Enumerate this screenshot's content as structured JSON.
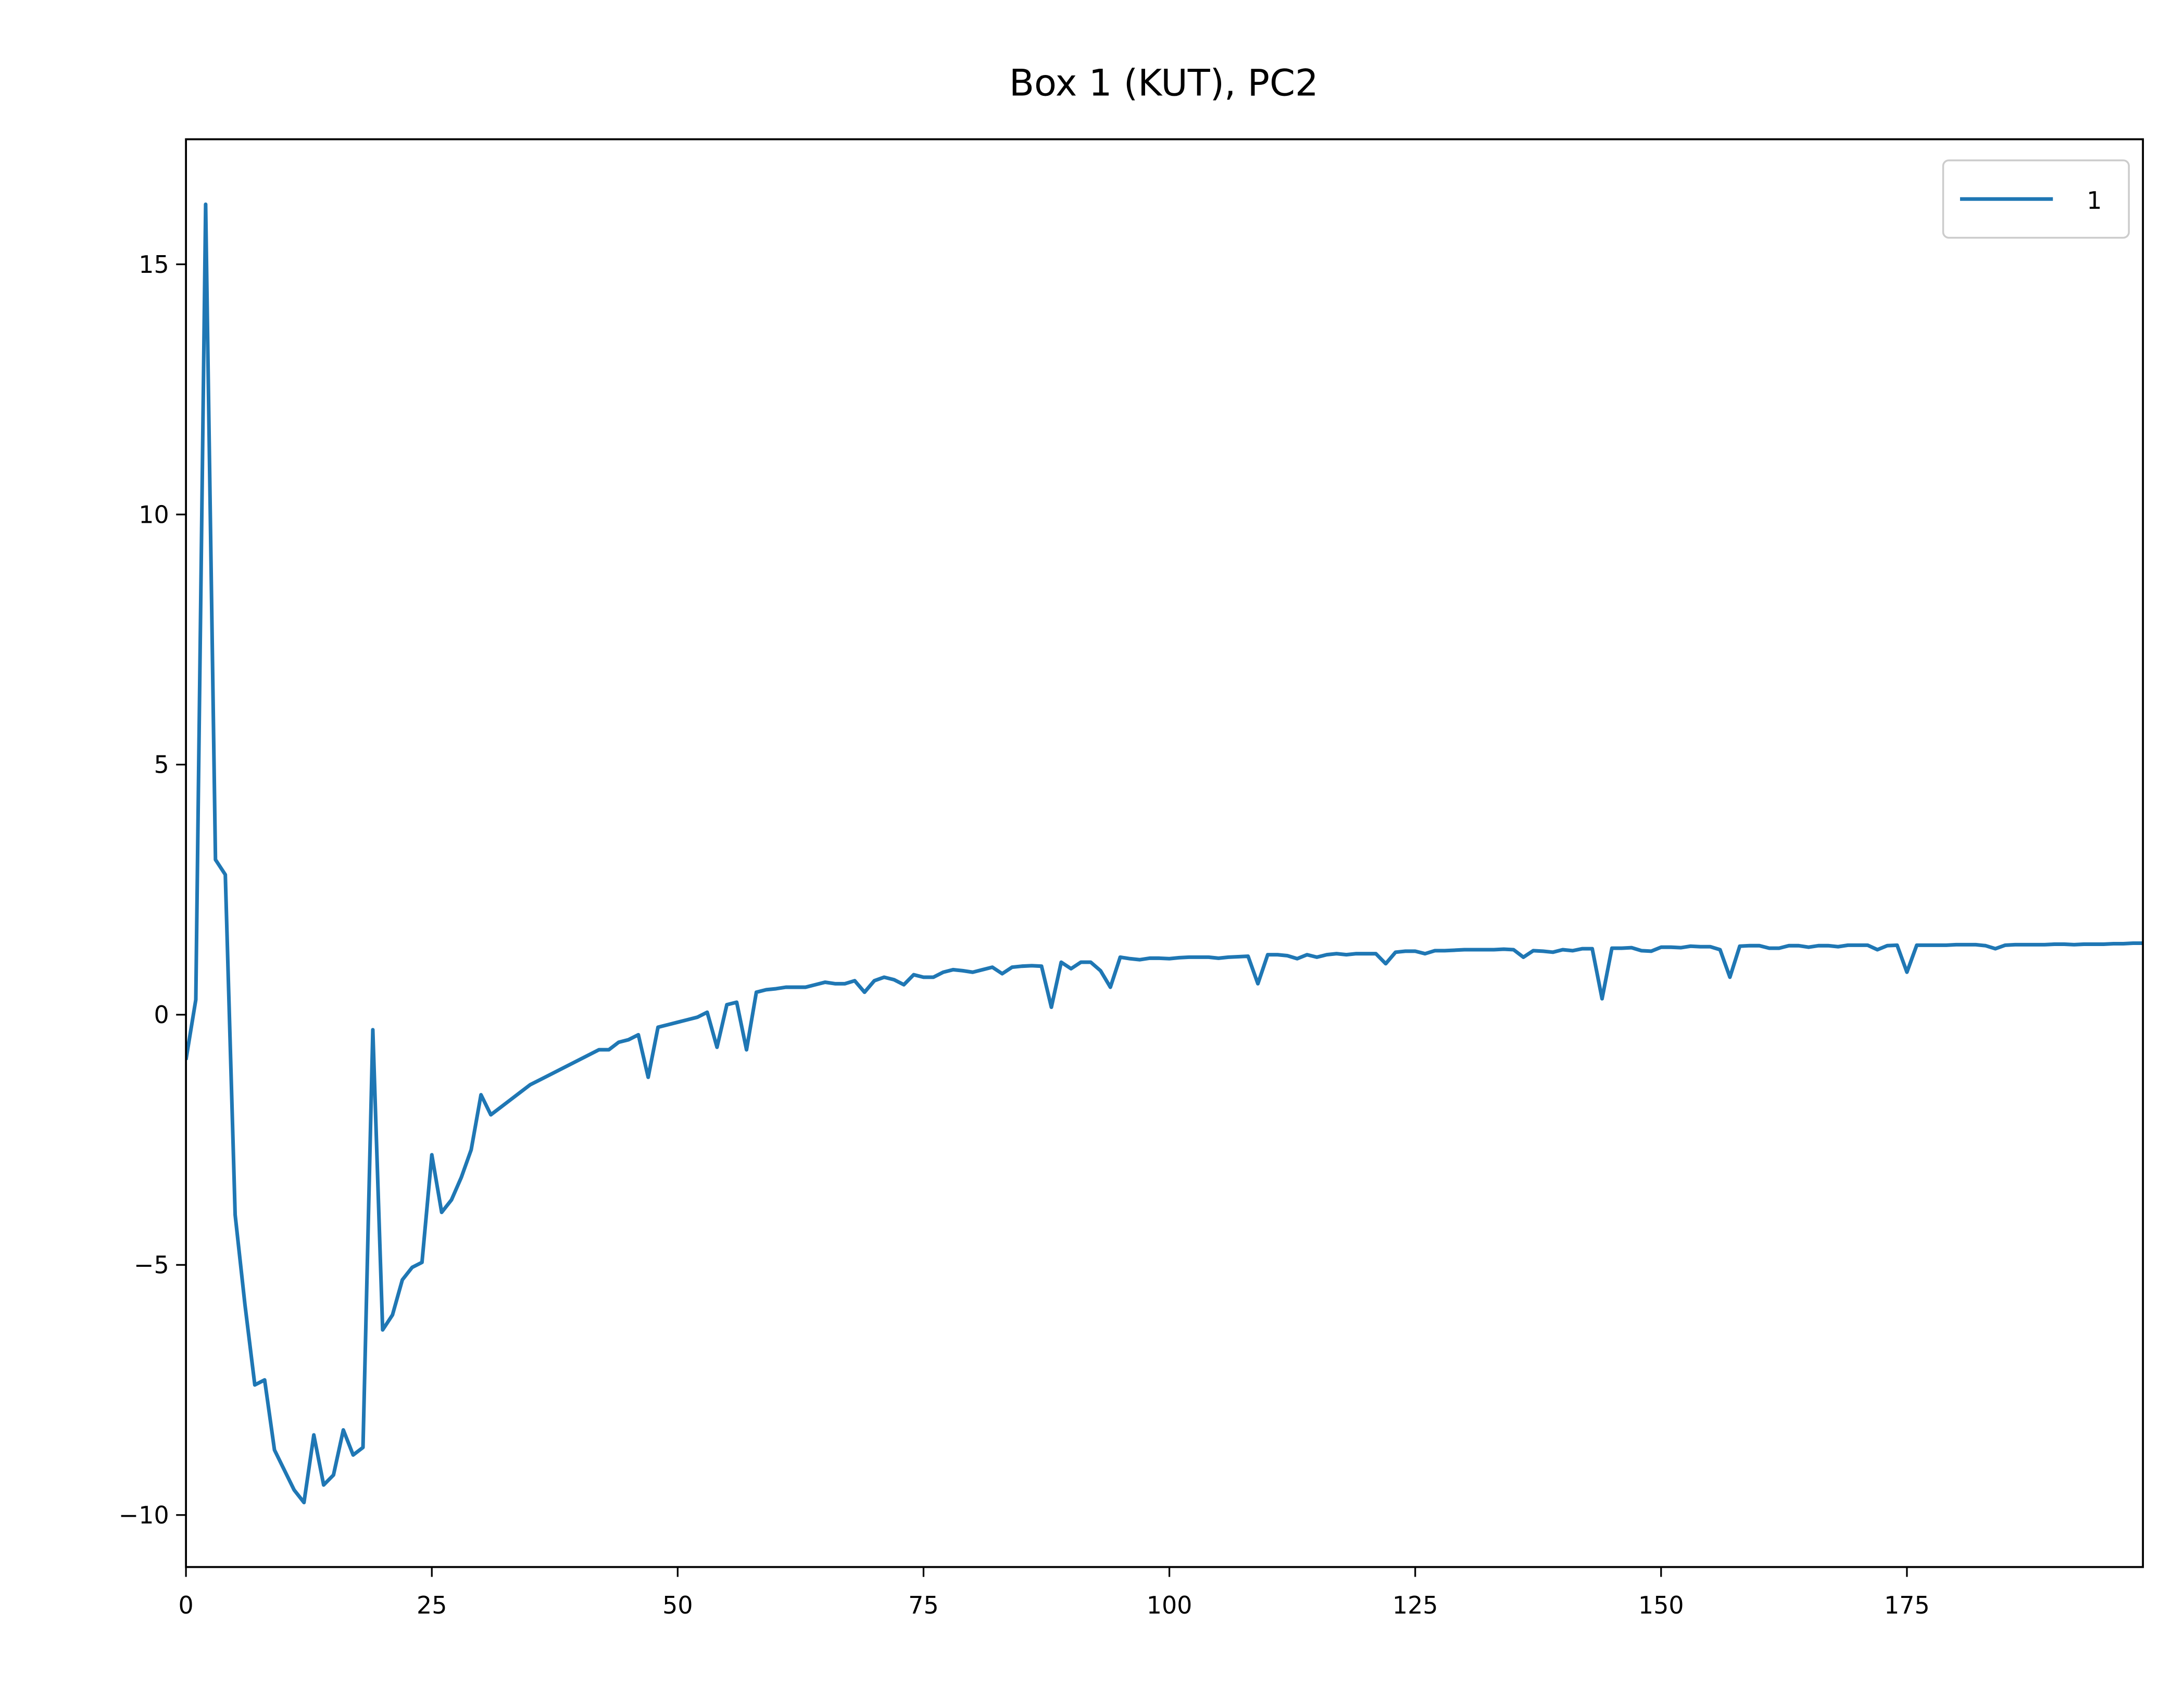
{
  "chart_data": {
    "type": "line",
    "title": "Box 1 (KUT), PC2",
    "x": [
      0,
      1,
      2,
      3,
      4,
      5,
      6,
      7,
      8,
      9,
      10,
      11,
      12,
      13,
      14,
      15,
      16,
      17,
      18,
      19,
      20,
      21,
      22,
      23,
      24,
      25,
      26,
      27,
      28,
      29,
      30,
      31,
      32,
      33,
      34,
      35,
      36,
      37,
      38,
      39,
      40,
      41,
      42,
      43,
      44,
      45,
      46,
      47,
      48,
      49,
      50,
      51,
      52,
      53,
      54,
      55,
      56,
      57,
      58,
      59,
      60,
      61,
      62,
      63,
      64,
      65,
      66,
      67,
      68,
      69,
      70,
      71,
      72,
      73,
      74,
      75,
      76,
      77,
      78,
      79,
      80,
      81,
      82,
      83,
      84,
      85,
      86,
      87,
      88,
      89,
      90,
      91,
      92,
      93,
      94,
      95,
      96,
      97,
      98,
      99,
      100,
      101,
      102,
      103,
      104,
      105,
      106,
      107,
      108,
      109,
      110,
      111,
      112,
      113,
      114,
      115,
      116,
      117,
      118,
      119,
      120,
      121,
      122,
      123,
      124,
      125,
      126,
      127,
      128,
      129,
      130,
      131,
      132,
      133,
      134,
      135,
      136,
      137,
      138,
      139,
      140,
      141,
      142,
      143,
      144,
      145,
      146,
      147,
      148,
      149,
      150,
      151,
      152,
      153,
      154,
      155,
      156,
      157,
      158,
      159,
      160,
      161,
      162,
      163,
      164,
      165,
      166,
      167,
      168,
      169,
      170,
      171,
      172,
      173,
      174,
      175,
      176,
      177,
      178,
      179,
      180,
      181,
      182,
      183,
      184,
      185,
      186,
      187,
      188,
      189,
      190,
      191,
      192,
      193,
      194,
      195,
      196,
      197,
      198,
      199
    ],
    "series": [
      {
        "name": "1",
        "color": "#1f77b4",
        "values": [
          -0.9,
          0.3,
          16.2,
          3.1,
          2.8,
          -4.0,
          -5.8,
          -7.4,
          -7.3,
          -8.7,
          -9.1,
          -9.5,
          -9.75,
          -8.4,
          -9.4,
          -9.2,
          -8.3,
          -8.8,
          -8.65,
          -0.3,
          -6.3,
          -6.0,
          -5.3,
          -5.05,
          -4.95,
          -2.8,
          -3.95,
          -3.7,
          -3.25,
          -2.7,
          -1.6,
          -2.0,
          -1.85,
          -1.7,
          -1.55,
          -1.4,
          -1.3,
          -1.2,
          -1.1,
          -1.0,
          -0.9,
          -0.8,
          -0.7,
          -0.7,
          -0.55,
          -0.5,
          -0.4,
          -1.25,
          -0.25,
          -0.2,
          -0.15,
          -0.1,
          -0.05,
          0.05,
          -0.65,
          0.2,
          0.25,
          -0.7,
          0.45,
          0.5,
          0.52,
          0.55,
          0.55,
          0.55,
          0.6,
          0.65,
          0.62,
          0.62,
          0.68,
          0.45,
          0.68,
          0.75,
          0.7,
          0.6,
          0.8,
          0.75,
          0.75,
          0.85,
          0.9,
          0.88,
          0.85,
          0.9,
          0.95,
          0.82,
          0.95,
          0.97,
          0.98,
          0.97,
          0.15,
          1.05,
          0.92,
          1.05,
          1.05,
          0.88,
          0.55,
          1.15,
          1.12,
          1.1,
          1.13,
          1.13,
          1.12,
          1.14,
          1.15,
          1.15,
          1.15,
          1.13,
          1.15,
          1.16,
          1.17,
          0.62,
          1.2,
          1.2,
          1.18,
          1.12,
          1.2,
          1.15,
          1.2,
          1.22,
          1.2,
          1.22,
          1.22,
          1.22,
          1.02,
          1.25,
          1.27,
          1.27,
          1.22,
          1.28,
          1.28,
          1.29,
          1.3,
          1.3,
          1.3,
          1.3,
          1.31,
          1.3,
          1.15,
          1.28,
          1.27,
          1.25,
          1.3,
          1.28,
          1.32,
          1.32,
          0.32,
          1.33,
          1.33,
          1.34,
          1.28,
          1.27,
          1.35,
          1.35,
          1.34,
          1.37,
          1.36,
          1.36,
          1.3,
          0.75,
          1.37,
          1.38,
          1.38,
          1.33,
          1.33,
          1.38,
          1.38,
          1.35,
          1.38,
          1.38,
          1.36,
          1.39,
          1.39,
          1.39,
          1.3,
          1.38,
          1.39,
          0.85,
          1.39,
          1.39,
          1.39,
          1.39,
          1.4,
          1.4,
          1.4,
          1.38,
          1.32,
          1.39,
          1.4,
          1.4,
          1.4,
          1.4,
          1.41,
          1.41,
          1.4,
          1.41,
          1.41,
          1.41,
          1.42,
          1.42,
          1.43,
          1.43
        ]
      }
    ],
    "xlim": [
      0,
      199
    ],
    "ylim": [
      -11.04,
      17.5
    ],
    "xticks": [
      0,
      25,
      50,
      75,
      100,
      125,
      150,
      175
    ],
    "yticks": [
      {
        "value": -10,
        "label": "−10"
      },
      {
        "value": -5,
        "label": "−5"
      },
      0,
      5,
      10,
      15
    ],
    "legend": "upper right"
  }
}
